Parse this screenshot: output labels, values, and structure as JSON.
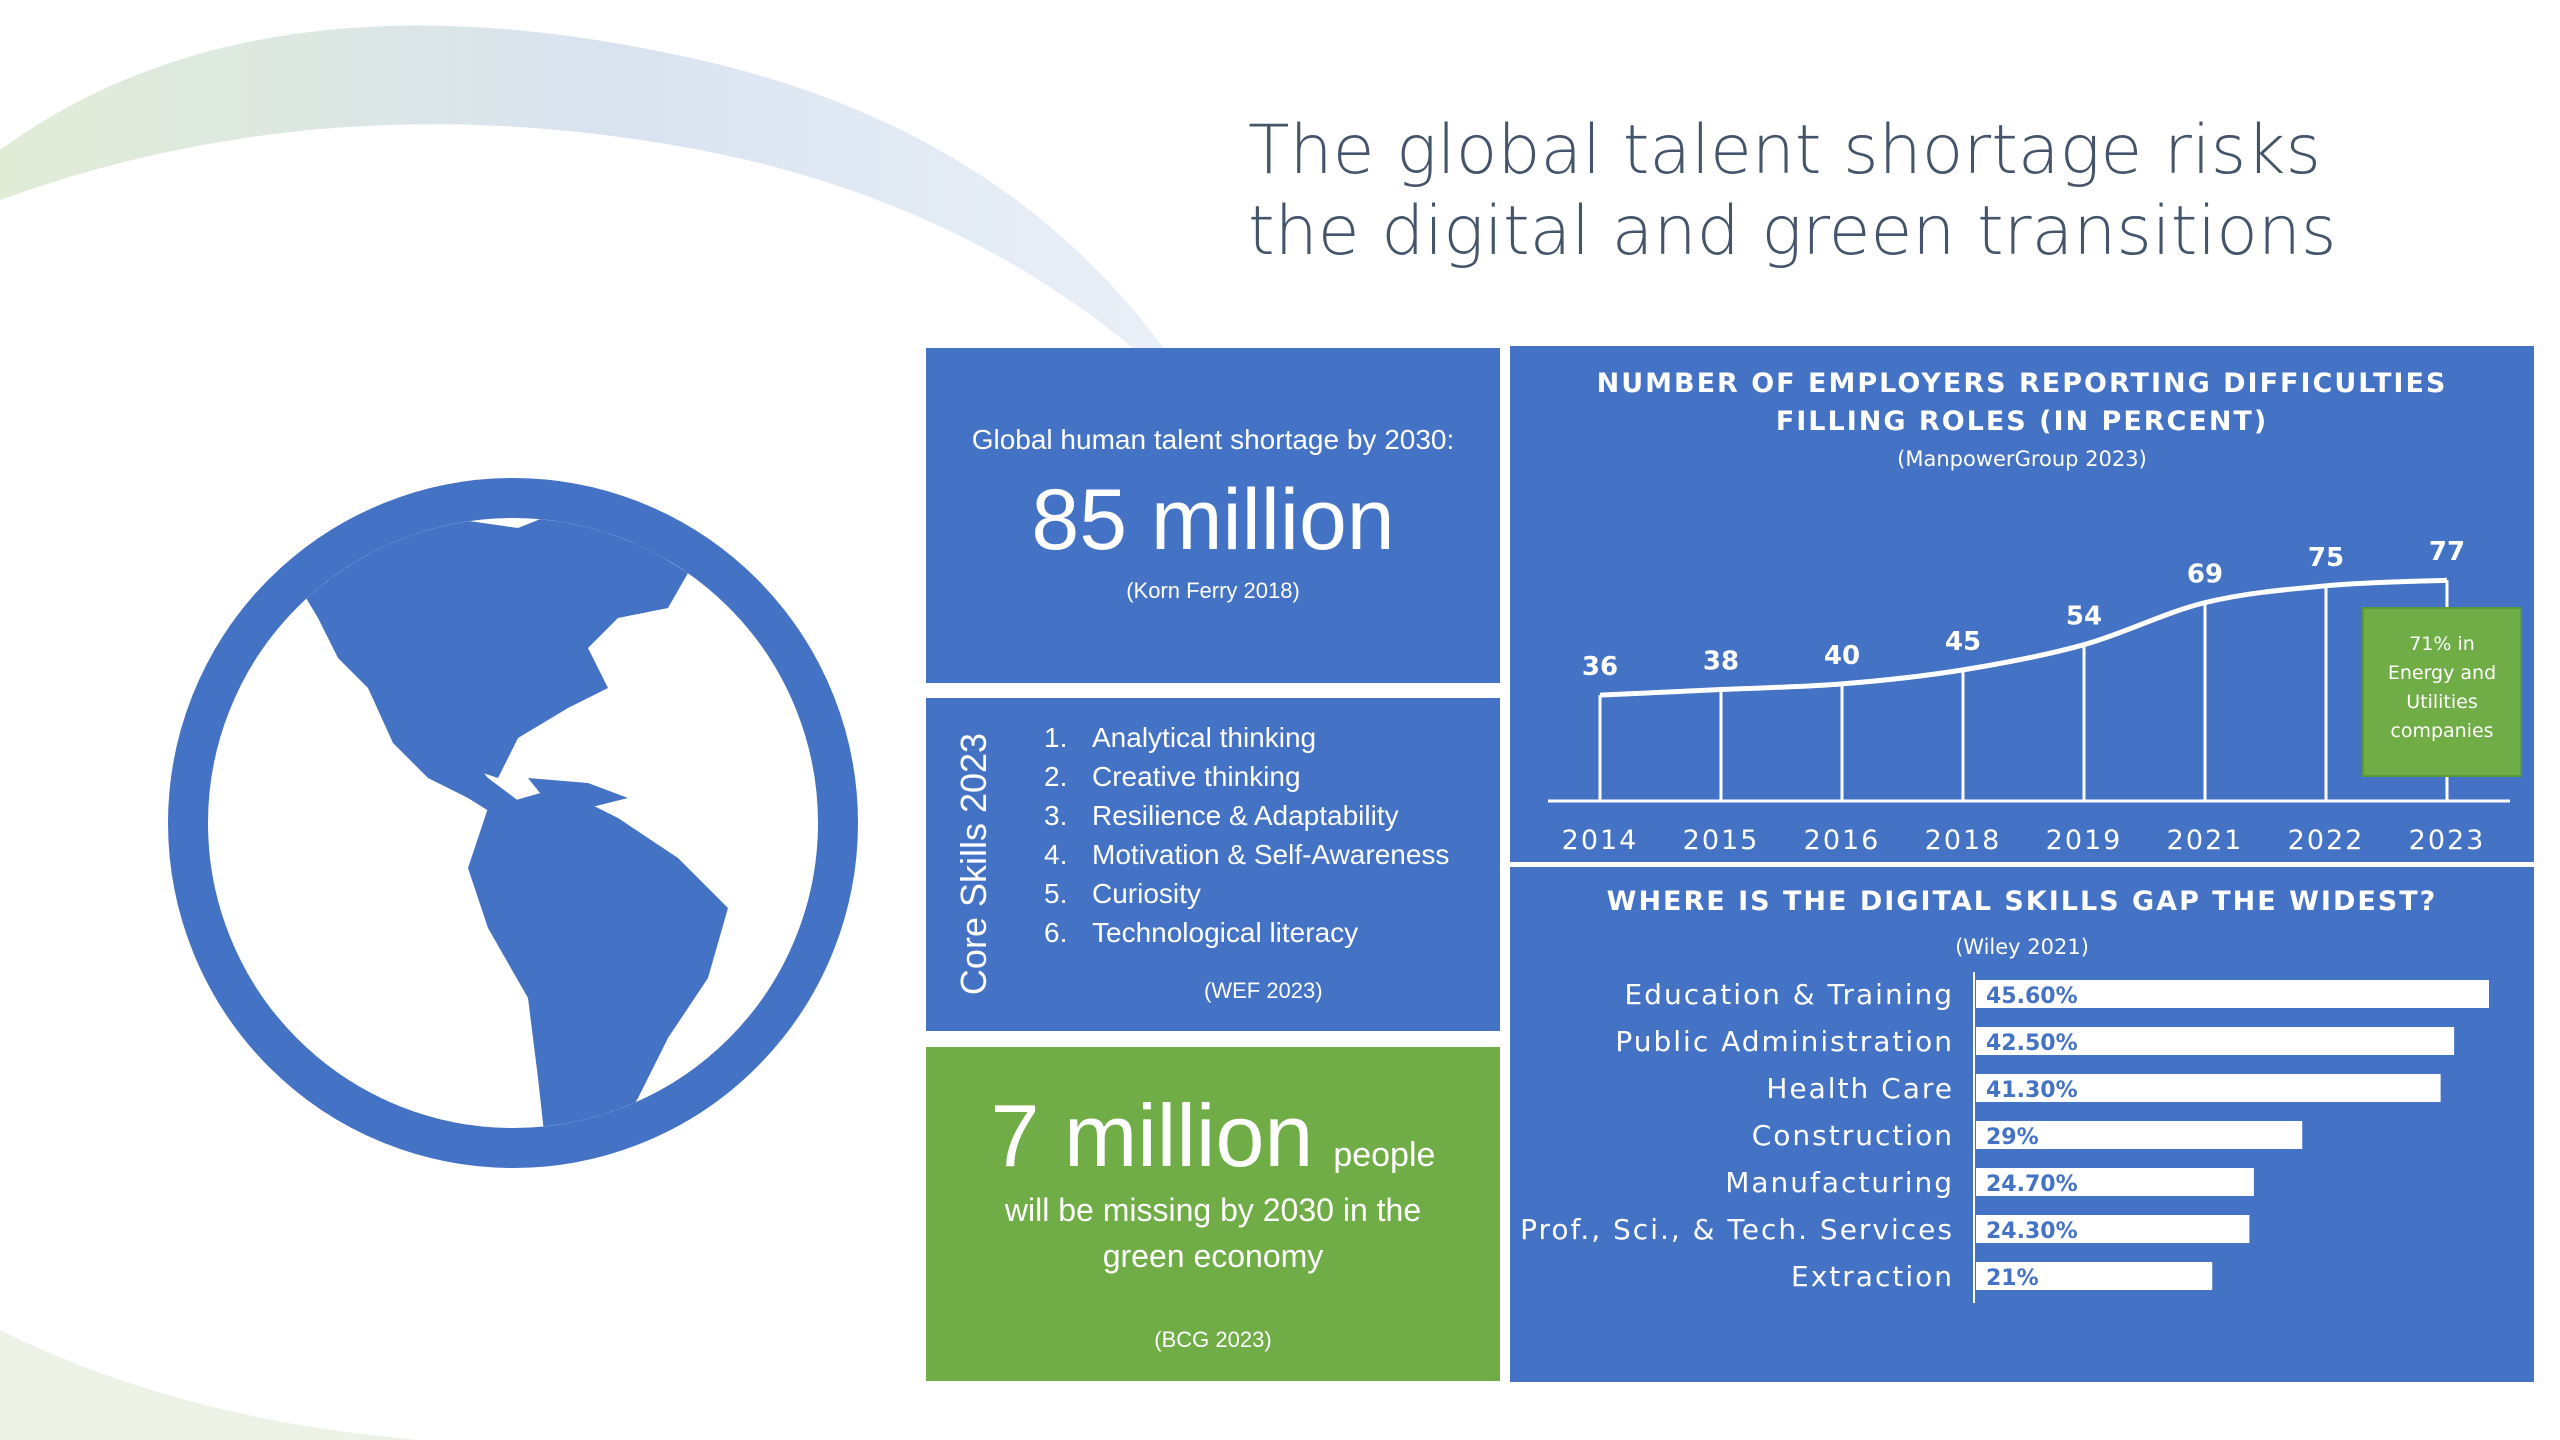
{
  "title": {
    "line1": "The global talent shortage risks",
    "line2": "the digital and green transitions"
  },
  "talent_panel": {
    "label": "Global human talent shortage by 2030:",
    "value": "85 million",
    "source": "(Korn Ferry 2018)"
  },
  "skills_panel": {
    "title": "Core Skills 2023",
    "items": [
      {
        "num": "1.",
        "text": "Analytical thinking"
      },
      {
        "num": "2.",
        "text": "Creative thinking"
      },
      {
        "num": "3.",
        "text": "Resilience & Adaptability"
      },
      {
        "num": "4.",
        "text": "Motivation & Self-Awareness"
      },
      {
        "num": "5.",
        "text": "Curiosity"
      },
      {
        "num": "6.",
        "text": "Technological literacy"
      }
    ],
    "source": "(WEF 2023)"
  },
  "green_panel": {
    "value": "7 million",
    "unit": "people",
    "description": "will be missing by 2030 in the green economy",
    "source": "(BCG 2023)"
  },
  "colors": {
    "blue": "#4472c4",
    "green": "#70ad47",
    "title": "#44546a"
  },
  "chart_data": [
    {
      "type": "line",
      "title": "NUMBER OF EMPLOYERS REPORTING DIFFICULTIES FILLING ROLES (IN PERCENT)",
      "title_lines": [
        "NUMBER OF EMPLOYERS REPORTING DIFFICULTIES",
        "FILLING ROLES (IN PERCENT)"
      ],
      "subtitle": "(ManpowerGroup 2023)",
      "categories": [
        "2014",
        "2015",
        "2016",
        "2018",
        "2019",
        "2021",
        "2022",
        "2023"
      ],
      "values": [
        36,
        38,
        40,
        45,
        54,
        69,
        75,
        77
      ],
      "ylim": [
        0,
        100
      ],
      "annotation": "71% in Energy and Utilities companies",
      "annotation_lines": [
        "71% in",
        "Energy and",
        "Utilities",
        "companies"
      ],
      "grid": false,
      "data_labels": true
    },
    {
      "type": "bar",
      "orientation": "horizontal",
      "title": "WHERE IS THE DIGITAL SKILLS GAP THE WIDEST?",
      "subtitle": "(Wiley 2021)",
      "categories": [
        "Education & Training",
        "Public Administration",
        "Health Care",
        "Construction",
        "Manufacturing",
        "Prof., Sci., & Tech. Services",
        "Extraction"
      ],
      "values": [
        45.6,
        42.5,
        41.3,
        29,
        24.7,
        24.3,
        21
      ],
      "labels": [
        "45.60%",
        "42.50%",
        "41.30%",
        "29%",
        "24.70%",
        "24.30%",
        "21%"
      ],
      "xlim": [
        0,
        50
      ]
    }
  ]
}
